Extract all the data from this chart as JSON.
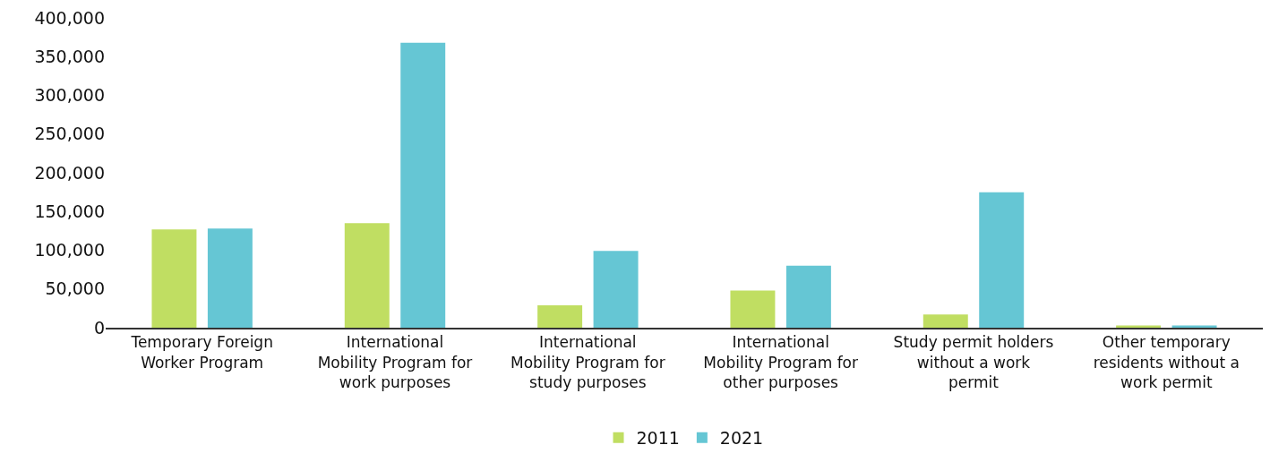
{
  "chart_data": {
    "type": "bar",
    "categories": [
      "Temporary Foreign Worker Program",
      "International Mobility Program for work purposes",
      "International Mobility Program for study purposes",
      "International Mobility Program for other purposes",
      "Study permit holders without a work permit",
      "Other temporary residents without a work permit"
    ],
    "series": [
      {
        "name": "2011",
        "color": "#c0de62",
        "values": [
          127000,
          135000,
          29000,
          48000,
          17000,
          3000
        ]
      },
      {
        "name": "2021",
        "color": "#65c6d4",
        "values": [
          128000,
          368000,
          99000,
          80000,
          175000,
          3000
        ]
      }
    ],
    "ylim": [
      0,
      400000
    ],
    "yticks": [
      {
        "value": 0,
        "label": "0"
      },
      {
        "value": 50000,
        "label": "50,000"
      },
      {
        "value": 100000,
        "label": "100,000"
      },
      {
        "value": 150000,
        "label": "150,000"
      },
      {
        "value": 200000,
        "label": "200,000"
      },
      {
        "value": 250000,
        "label": "250,000"
      },
      {
        "value": 300000,
        "label": "300,000"
      },
      {
        "value": 350000,
        "label": "350,000"
      },
      {
        "value": 400000,
        "label": "400,000"
      }
    ],
    "grid": false,
    "legend": "bottom"
  }
}
